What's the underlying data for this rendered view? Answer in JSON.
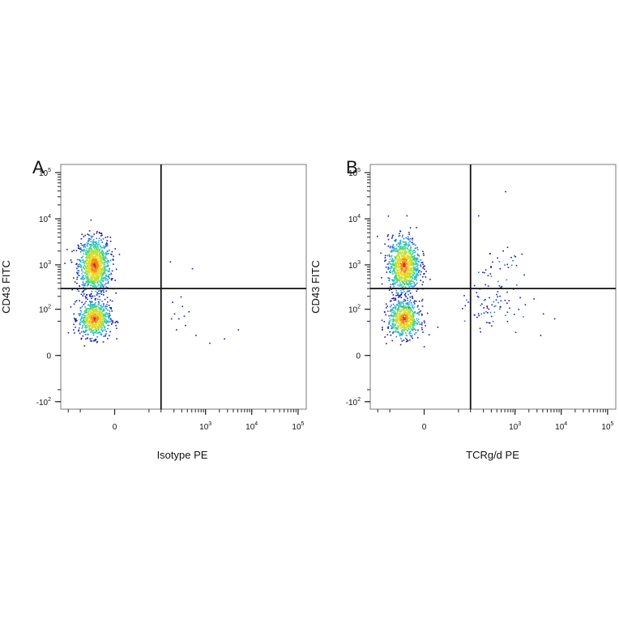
{
  "figure": {
    "background": "#ffffff",
    "density_colormap": [
      "#1a1aa8",
      "#2a6fd6",
      "#27b5d8",
      "#3fd28a",
      "#b6e23a",
      "#f2d71e",
      "#f08a1a",
      "#d62a12"
    ]
  },
  "chart_data": [
    {
      "type": "scatter",
      "panel": "A",
      "title": "",
      "xlabel": "Isotype PE",
      "ylabel": "CD43 FITC",
      "x_scale": "biexponential",
      "y_scale": "biexponential",
      "xlim": [
        -150,
        150000
      ],
      "ylim": [
        -150,
        150000
      ],
      "x_ticks": [
        {
          "base": "0",
          "exp": "",
          "value": 0
        },
        {
          "base": "10",
          "exp": "3",
          "value": 1000
        },
        {
          "base": "10",
          "exp": "4",
          "value": 10000
        },
        {
          "base": "10",
          "exp": "5",
          "value": 100000
        }
      ],
      "y_ticks": [
        {
          "base": "-10",
          "exp": "2",
          "value": -100
        },
        {
          "base": "0",
          "exp": "",
          "value": 0
        },
        {
          "base": "10",
          "exp": "2",
          "value": 100
        },
        {
          "base": "10",
          "exp": "3",
          "value": 1000
        },
        {
          "base": "10",
          "exp": "4",
          "value": 10000
        },
        {
          "base": "10",
          "exp": "5",
          "value": 100000
        }
      ],
      "quadrant_gate": {
        "x": 100,
        "y": 300
      },
      "populations": [
        {
          "description": "CD43 high, PE negative",
          "x_center": -20,
          "y_center": 1000,
          "count": 1100
        },
        {
          "description": "CD43 low, PE negative",
          "x_center": -20,
          "y_center": 60,
          "count": 700
        }
      ],
      "sparse_events": [
        {
          "x": 200,
          "y": 80
        },
        {
          "x": 250,
          "y": 60
        },
        {
          "x": 300,
          "y": 120
        },
        {
          "x": 350,
          "y": 40
        },
        {
          "x": 180,
          "y": 150
        },
        {
          "x": 420,
          "y": 90
        },
        {
          "x": 600,
          "y": 20
        },
        {
          "x": 1200,
          "y": 10
        },
        {
          "x": 2500,
          "y": 15
        },
        {
          "x": 5000,
          "y": 30
        },
        {
          "x": 500,
          "y": 850
        },
        {
          "x": 160,
          "y": 1200
        },
        {
          "x": 220,
          "y": 30
        },
        {
          "x": 280,
          "y": 200
        },
        {
          "x": 170,
          "y": 60
        },
        {
          "x": 330,
          "y": 70
        }
      ]
    },
    {
      "type": "scatter",
      "panel": "B",
      "title": "",
      "xlabel": "TCRg/d PE",
      "ylabel": "CD43 FITC",
      "x_scale": "biexponential",
      "y_scale": "biexponential",
      "xlim": [
        -150,
        150000
      ],
      "ylim": [
        -150,
        150000
      ],
      "x_ticks": [
        {
          "base": "0",
          "exp": "",
          "value": 0
        },
        {
          "base": "10",
          "exp": "3",
          "value": 1000
        },
        {
          "base": "10",
          "exp": "4",
          "value": 10000
        },
        {
          "base": "10",
          "exp": "5",
          "value": 100000
        }
      ],
      "y_ticks": [
        {
          "base": "-10",
          "exp": "2",
          "value": -100
        },
        {
          "base": "0",
          "exp": "",
          "value": 0
        },
        {
          "base": "10",
          "exp": "2",
          "value": 100
        },
        {
          "base": "10",
          "exp": "3",
          "value": 1000
        },
        {
          "base": "10",
          "exp": "4",
          "value": 10000
        },
        {
          "base": "10",
          "exp": "5",
          "value": 100000
        }
      ],
      "quadrant_gate": {
        "x": 100,
        "y": 300
      },
      "populations": [
        {
          "description": "CD43 high, TCRg/d negative",
          "x_center": -20,
          "y_center": 1000,
          "count": 1000
        },
        {
          "description": "CD43 low, TCRg/d negative",
          "x_center": -20,
          "y_center": 60,
          "count": 700
        },
        {
          "description": "CD43 high, TCRg/d positive",
          "x_center": 450,
          "y_center": 900,
          "count": 35
        },
        {
          "description": "CD43 low, TCRg/d positive",
          "x_center": 300,
          "y_center": 100,
          "count": 70
        }
      ],
      "sparse_events": [
        {
          "x": 600,
          "y": 40000
        },
        {
          "x": 150,
          "y": 12000
        },
        {
          "x": 2500,
          "y": 180
        },
        {
          "x": 3500,
          "y": 20
        },
        {
          "x": 4000,
          "y": 80
        },
        {
          "x": 7000,
          "y": 60
        },
        {
          "x": 1000,
          "y": 25
        },
        {
          "x": 800,
          "y": 1500
        },
        {
          "x": 900,
          "y": 300
        }
      ]
    }
  ]
}
